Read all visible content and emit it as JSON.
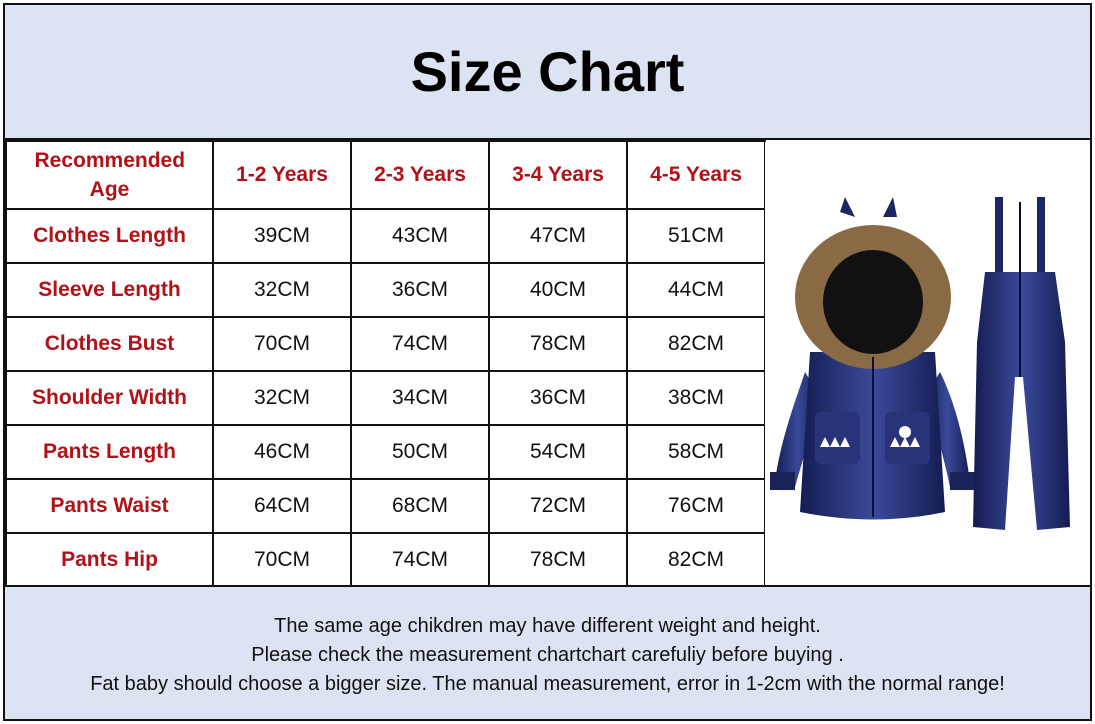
{
  "title": "Size Chart",
  "table": {
    "corner_label": "Recommended Age",
    "columns": [
      "1-2 Years",
      "2-3 Years",
      "3-4 Years",
      "4-5 Years"
    ],
    "rows": [
      {
        "label": "Clothes Length",
        "values": [
          "39CM",
          "43CM",
          "47CM",
          "51CM"
        ]
      },
      {
        "label": "Sleeve Length",
        "values": [
          "32CM",
          "36CM",
          "40CM",
          "44CM"
        ]
      },
      {
        "label": "Clothes Bust",
        "values": [
          "70CM",
          "74CM",
          "78CM",
          "82CM"
        ]
      },
      {
        "label": "Shoulder Width",
        "values": [
          "32CM",
          "34CM",
          "36CM",
          "38CM"
        ]
      },
      {
        "label": "Pants Length",
        "values": [
          "46CM",
          "50CM",
          "54CM",
          "58CM"
        ]
      },
      {
        "label": "Pants Waist",
        "values": [
          "64CM",
          "68CM",
          "72CM",
          "76CM"
        ]
      },
      {
        "label": "Pants Hip",
        "values": [
          "70CM",
          "74CM",
          "78CM",
          "82CM"
        ]
      }
    ]
  },
  "product_image": "navy-hooded-puffer-jacket-and-overalls",
  "notes": [
    "The same age chikdren may have different weight and height.",
    "Please check the measurement chartchart carefuliy before buying .",
    "Fat baby should choose a bigger size. The manual measurement, error in 1-2cm with the normal range!"
  ],
  "colors": {
    "header_text": "#b01218",
    "band_bg": "#dce3f2",
    "garment": "#1f2a6b"
  }
}
